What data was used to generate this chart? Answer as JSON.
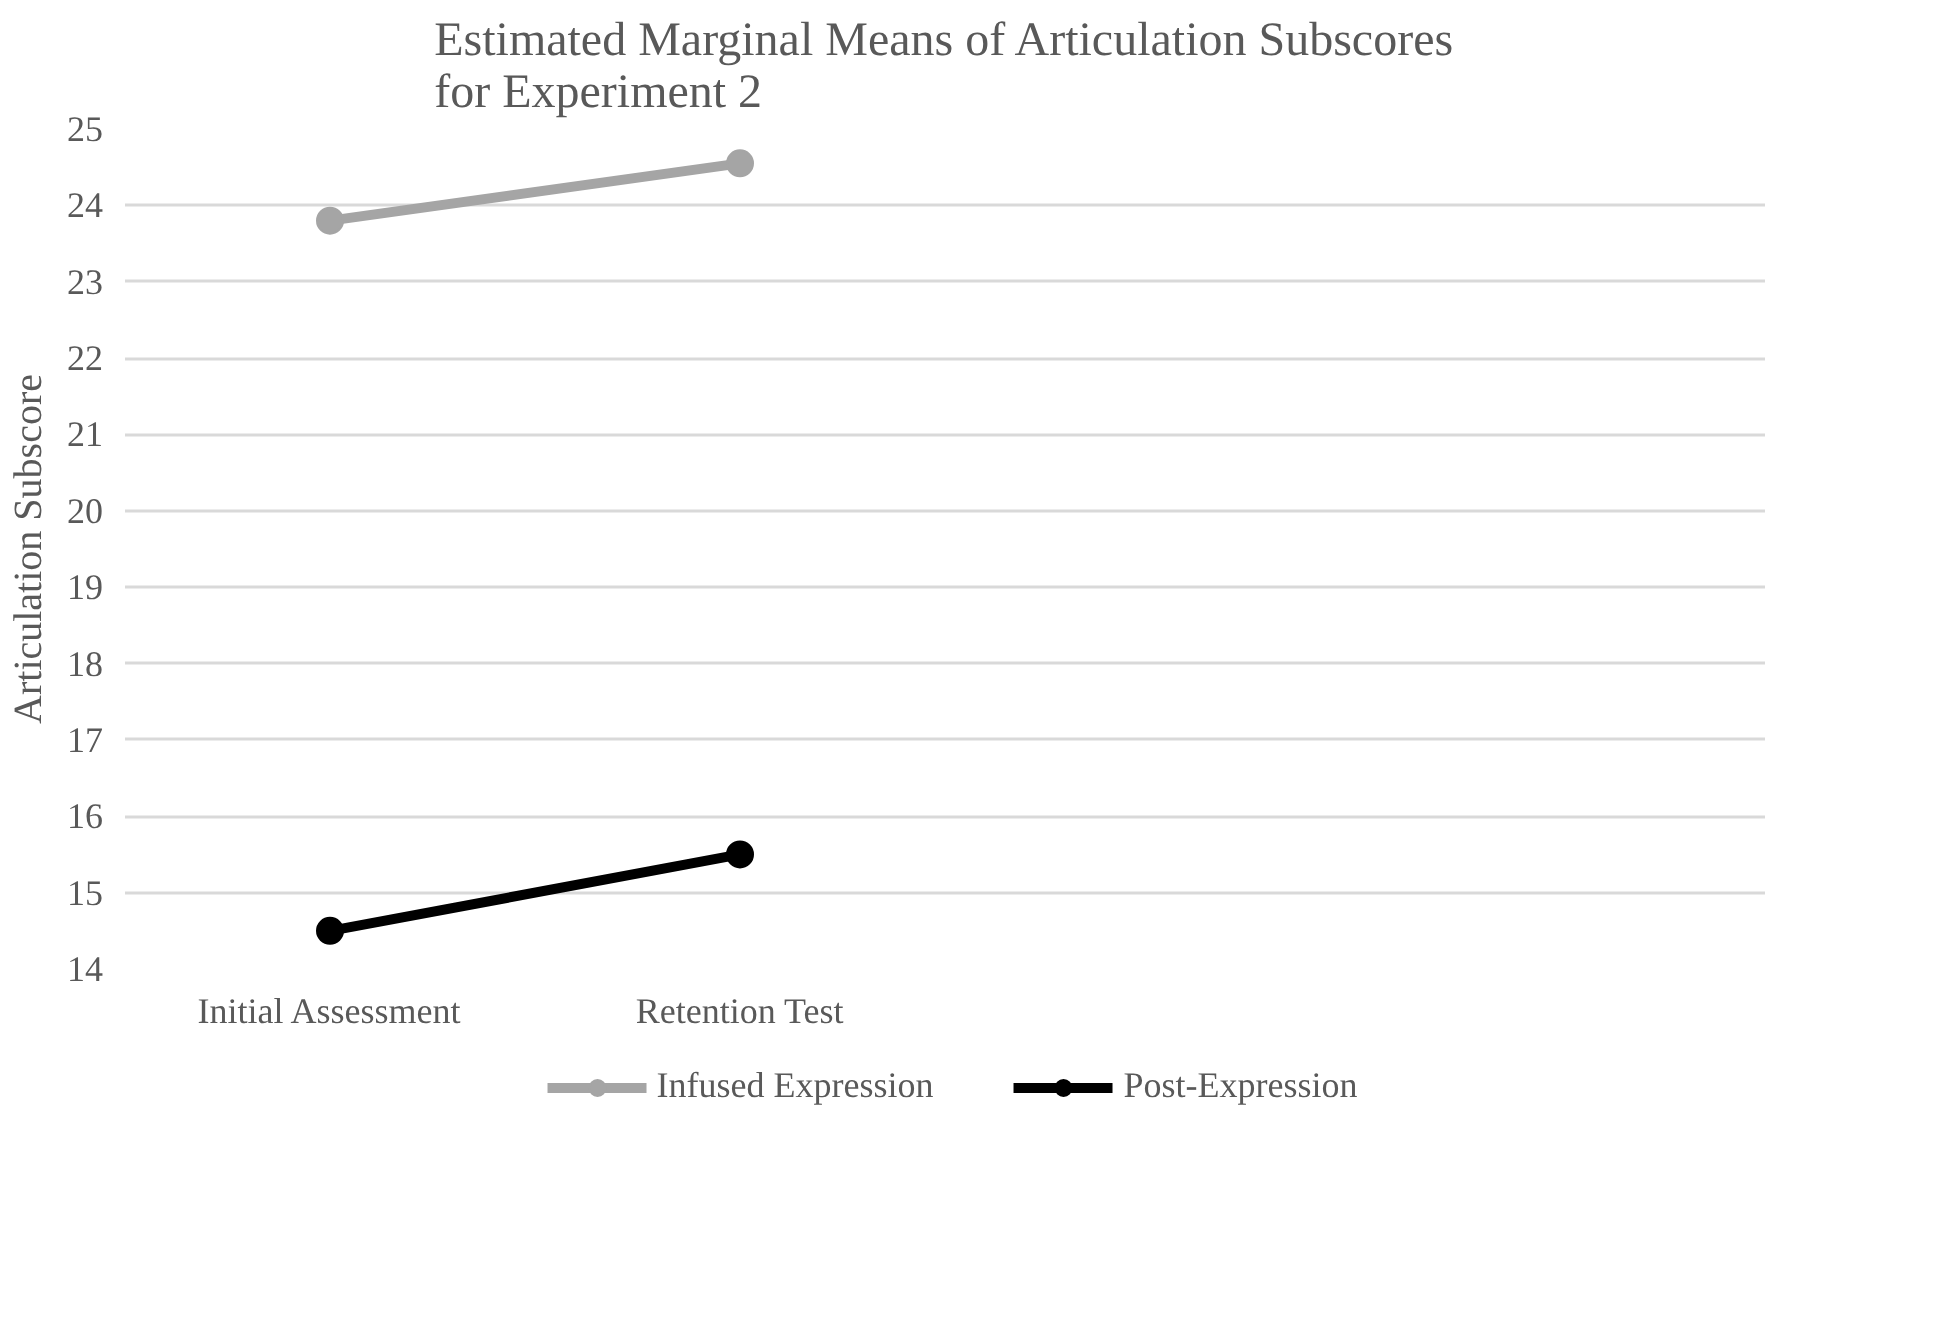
{
  "chart_data": {
    "type": "line",
    "title": "Estimated Marginal Means of Articulation Subscores\nfor Experiment 2",
    "ylabel": "Articulation Subscore",
    "categories": [
      "Initial Assessment",
      "Retention Test",
      null,
      null
    ],
    "series": [
      {
        "name": "Infused Expression",
        "color": "#a5a5a5",
        "values": [
          23.8,
          24.55,
          null,
          null
        ]
      },
      {
        "name": "Post-Expression",
        "color": "#000000",
        "values": [
          14.5,
          15.5,
          null,
          null
        ]
      }
    ],
    "ylim": [
      14,
      25
    ],
    "yticks": [
      14,
      15,
      16,
      17,
      18,
      19,
      20,
      21,
      22,
      23,
      24,
      25
    ],
    "grid": "y",
    "legend": "bottom",
    "marker": "circle",
    "line_style": "solid"
  }
}
